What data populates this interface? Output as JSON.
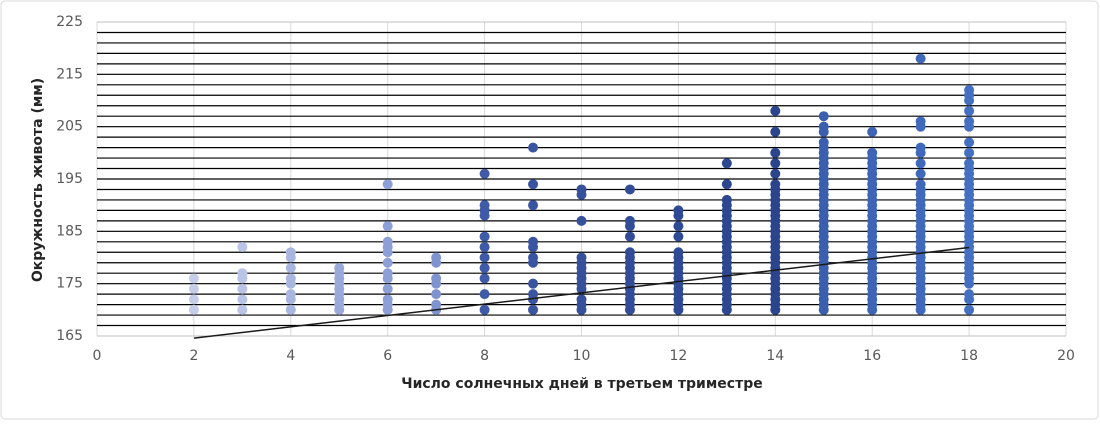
{
  "chart_data": {
    "type": "scatter",
    "xlabel": "Число солнечных дней в третьем триместре",
    "ylabel": "Окружность живота (мм)",
    "xlim": [
      0,
      20
    ],
    "xticks": [
      0,
      2,
      4,
      6,
      8,
      10,
      12,
      14,
      16,
      18,
      20
    ],
    "ylim": [
      165,
      225
    ],
    "yticks": [
      165,
      175,
      185,
      195,
      205,
      215,
      225
    ],
    "minor_yticks": [
      167,
      169,
      171,
      173,
      175,
      177,
      179,
      181,
      183,
      185,
      187,
      189,
      191,
      193,
      195,
      197,
      199,
      201,
      203,
      205,
      207,
      209,
      211,
      213,
      215,
      217,
      219,
      221,
      223
    ],
    "grid": true,
    "trendline": {
      "color": "#1a1a1a",
      "x": [
        2,
        18
      ],
      "y": [
        164.6,
        181.9
      ]
    },
    "series": [
      {
        "x": 2,
        "color": "#c5cde9",
        "values": [
          170,
          172,
          174,
          176
        ]
      },
      {
        "x": 3,
        "color": "#b9c4e6",
        "values": [
          170,
          172,
          174,
          176,
          177,
          182
        ]
      },
      {
        "x": 4,
        "color": "#a9b7e0",
        "values": [
          170,
          172,
          173,
          175,
          176,
          178,
          180,
          181
        ]
      },
      {
        "x": 5,
        "color": "#9aa9da",
        "values": [
          170,
          171,
          172,
          173,
          174,
          175,
          176,
          177,
          178
        ]
      },
      {
        "x": 6,
        "color": "#8c9fd6",
        "values": [
          170,
          171,
          172,
          174,
          176,
          177,
          179,
          181,
          182,
          183,
          186,
          194
        ]
      },
      {
        "x": 7,
        "color": "#7f93cf",
        "values": [
          170,
          171,
          173,
          175,
          176,
          179,
          180
        ]
      },
      {
        "x": 8,
        "color": "#3f5aa6",
        "values": [
          170,
          173,
          176,
          178,
          180,
          182,
          184,
          188,
          189,
          190,
          196
        ]
      },
      {
        "x": 9,
        "color": "#3a55a0",
        "values": [
          170,
          172,
          173,
          175,
          179,
          180,
          182,
          183,
          190,
          194,
          201
        ]
      },
      {
        "x": 10,
        "color": "#36519c",
        "values": [
          170,
          171,
          172,
          174,
          175,
          176,
          177,
          178,
          179,
          180,
          187,
          192,
          193
        ]
      },
      {
        "x": 11,
        "color": "#324c97",
        "values": [
          170,
          171,
          172,
          173,
          174,
          175,
          176,
          177,
          178,
          179,
          180,
          181,
          184,
          186,
          187,
          193
        ]
      },
      {
        "x": 12,
        "color": "#2f4a94",
        "values": [
          170,
          171,
          172,
          173,
          174,
          175,
          176,
          177,
          178,
          179,
          180,
          181,
          184,
          186,
          188,
          189
        ]
      },
      {
        "x": 13,
        "color": "#2c4790",
        "values": [
          170,
          171,
          172,
          173,
          174,
          175,
          176,
          177,
          178,
          179,
          180,
          181,
          182,
          183,
          184,
          185,
          186,
          187,
          188,
          189,
          190,
          191,
          194,
          198
        ]
      },
      {
        "x": 14,
        "color": "#2a458d",
        "values": [
          170,
          171,
          172,
          173,
          174,
          175,
          176,
          177,
          178,
          179,
          180,
          181,
          182,
          183,
          184,
          185,
          186,
          187,
          188,
          189,
          190,
          191,
          192,
          193,
          194,
          196,
          198,
          200,
          204,
          208
        ]
      },
      {
        "x": 15,
        "color": "#3a5faf",
        "values": [
          170,
          171,
          172,
          173,
          174,
          175,
          176,
          177,
          178,
          179,
          180,
          181,
          182,
          183,
          184,
          185,
          186,
          187,
          188,
          189,
          190,
          191,
          192,
          193,
          194,
          195,
          196,
          197,
          198,
          199,
          200,
          201,
          202,
          204,
          205,
          207
        ]
      },
      {
        "x": 16,
        "color": "#3e64b6",
        "values": [
          170,
          171,
          172,
          173,
          174,
          175,
          176,
          177,
          178,
          179,
          180,
          181,
          182,
          183,
          184,
          185,
          186,
          187,
          188,
          189,
          190,
          191,
          192,
          193,
          194,
          195,
          196,
          197,
          198,
          199,
          200,
          204
        ]
      },
      {
        "x": 17,
        "color": "#4169bb",
        "values": [
          170,
          171,
          172,
          173,
          174,
          175,
          176,
          177,
          178,
          179,
          180,
          181,
          182,
          183,
          184,
          185,
          186,
          187,
          188,
          189,
          190,
          191,
          192,
          193,
          194,
          196,
          198,
          200,
          201,
          205,
          206,
          218
        ]
      },
      {
        "x": 18,
        "color": "#4470c2",
        "values": [
          170,
          172,
          173,
          175,
          176,
          177,
          178,
          179,
          180,
          181,
          182,
          183,
          184,
          185,
          186,
          187,
          188,
          189,
          190,
          191,
          192,
          193,
          194,
          195,
          196,
          197,
          198,
          200,
          202,
          205,
          206,
          208,
          210,
          211,
          212
        ]
      }
    ]
  }
}
